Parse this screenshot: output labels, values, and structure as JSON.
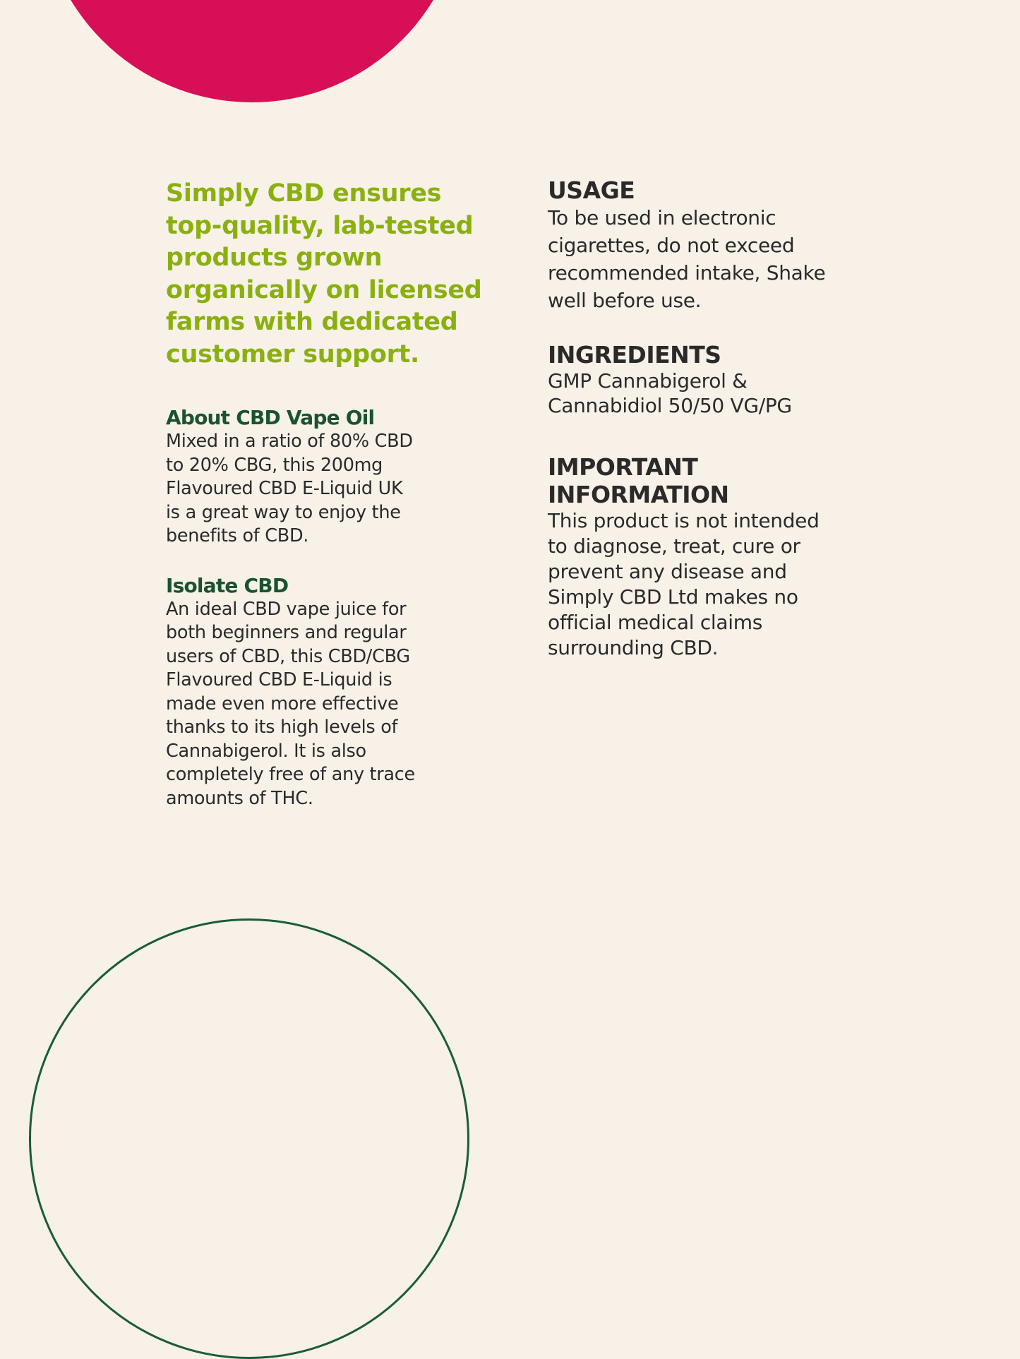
{
  "colors": {
    "background": "#f7f1e8",
    "accent_pink": "#d70f56",
    "accent_lime": "#8ab00f",
    "dark_green": "#1a5232",
    "text": "#2a2a2a"
  },
  "tagline": [
    "Simply CBD ensures",
    "top-quality, lab-tested",
    "products grown",
    "organically on licensed",
    "farms with dedicated",
    "customer support."
  ],
  "about": {
    "heading": "About CBD Vape Oil",
    "lines": [
      "Mixed in a ratio of 80% CBD",
      "to 20% CBG, this 200mg",
      "Flavoured CBD E-Liquid UK",
      "is a great way to enjoy the",
      "benefits of CBD."
    ]
  },
  "isolate": {
    "heading": "Isolate CBD",
    "lines": [
      "An ideal CBD vape juice for",
      "both beginners and regular",
      "users of CBD, this CBD/CBG",
      "Flavoured CBD E-Liquid is",
      "made even more effective",
      "thanks to its high levels of",
      "Cannabigerol. It is also",
      "completely free of any trace",
      "amounts of THC."
    ]
  },
  "usage": {
    "heading": "USAGE",
    "lines": [
      "To be used in electronic",
      "cigarettes, do not exceed",
      "recommended intake, Shake",
      "well before use."
    ]
  },
  "ingredients": {
    "heading": "INGREDIENTS",
    "lines": [
      "GMP Cannabigerol &",
      "Cannabidiol 50/50 VG/PG"
    ]
  },
  "important": {
    "heading": [
      "IMPORTANT",
      "INFORMATION"
    ],
    "lines": [
      "This product is not intended",
      "to diagnose, treat, cure or",
      "prevent any disease and",
      "Simply CBD Ltd makes no",
      "official medical claims",
      "surrounding CBD."
    ]
  }
}
